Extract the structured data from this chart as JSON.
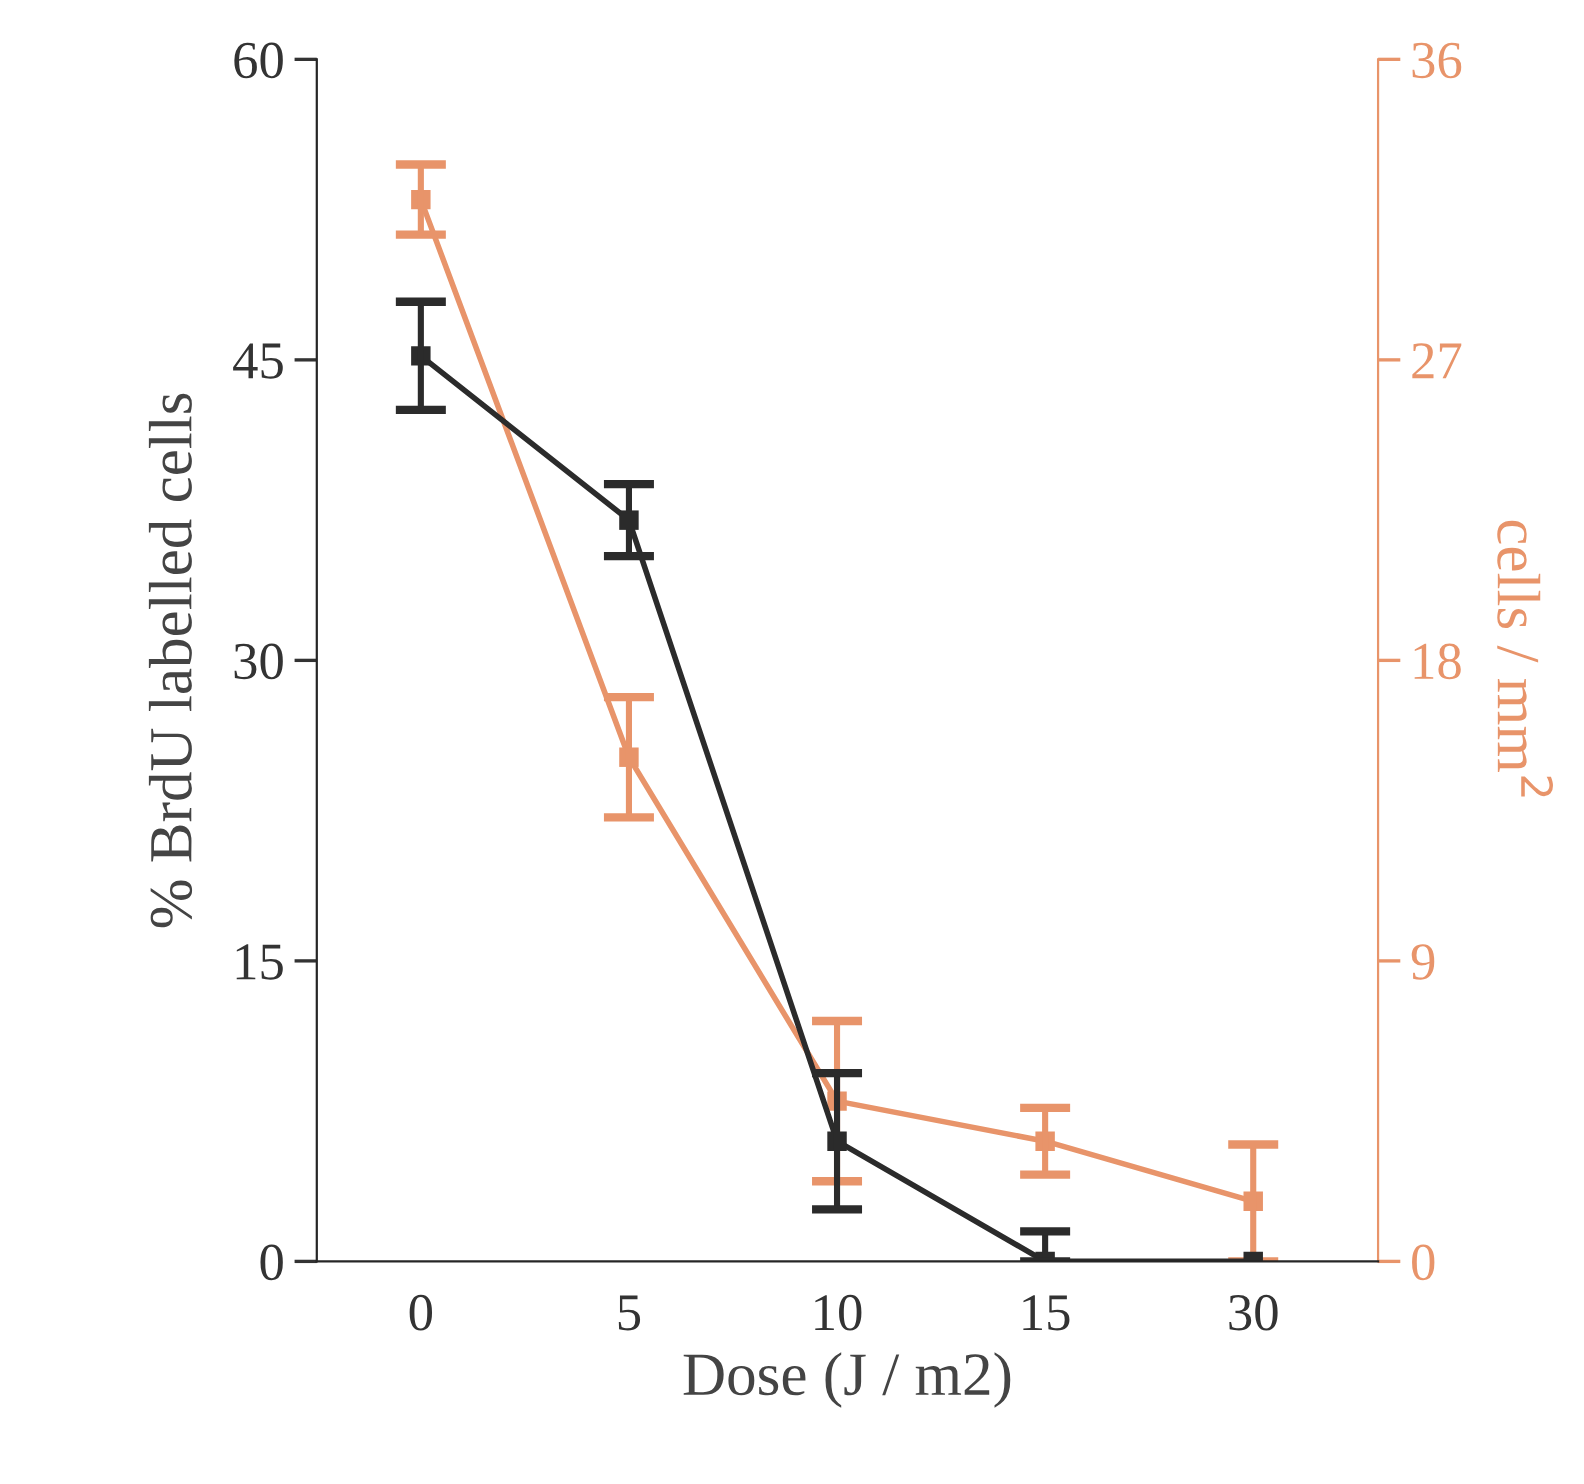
{
  "chart_data": {
    "type": "line",
    "xlabel": "Dose (J / m2)",
    "ylabel": "% BrdU labelled cells",
    "y2label": "cells / mm$^{2}$",
    "categories": [
      "0",
      "5",
      "10",
      "15",
      "30"
    ],
    "series": [
      {
        "color": "#2b2b2b",
        "values": [
          45.2,
          37.0,
          6.0,
          0,
          0
        ],
        "errors": [
          2.7,
          1.8,
          3.4,
          [
            0,
            1.5
          ],
          null
        ]
      },
      {
        "color": "#e8946a",
        "axis": "y2",
        "values": [
          31.8,
          15.1,
          4.8,
          3.6,
          1.8
        ],
        "errors": [
          1.05,
          1.8,
          2.4,
          1.0,
          [
            1.8,
            1.7
          ]
        ]
      }
    ],
    "ylim": [
      0,
      60
    ],
    "yticks": [
      0,
      15,
      30,
      45,
      60
    ],
    "y2lim": [
      0,
      36
    ],
    "y2ticks": [
      0,
      9,
      18,
      27,
      36
    ],
    "marker": "square",
    "line_style": "solid",
    "grid": false
  }
}
